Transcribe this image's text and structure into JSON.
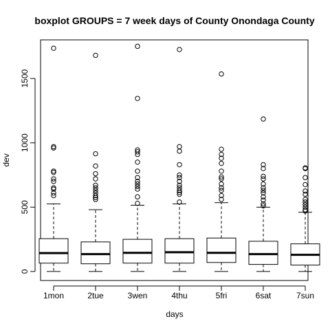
{
  "chart_data": {
    "type": "boxplot",
    "title": "boxplot GROUPS = 7 week days of County Onondaga County",
    "xlabel": "days",
    "ylabel": "dev",
    "ylim": [
      -70,
      1800
    ],
    "yticks": [
      0,
      500,
      1000,
      1500
    ],
    "categories": [
      "1mon",
      "2tue",
      "3wen",
      "4thu",
      "5fri",
      "6sat",
      "7sun"
    ],
    "grid": false,
    "legend": "none",
    "boxes": [
      {
        "category": "1mon",
        "whisker_low": 0,
        "q1": 65,
        "median": 143,
        "q3": 255,
        "whisker_high": 525,
        "outliers": [
          590,
          610,
          640,
          650,
          700,
          720,
          770,
          780,
          960,
          970,
          1735
        ]
      },
      {
        "category": "2tue",
        "whisker_low": 0,
        "q1": 60,
        "median": 135,
        "q3": 230,
        "whisker_high": 480,
        "outliers": [
          560,
          575,
          590,
          610,
          630,
          650,
          670,
          720,
          760,
          820,
          915,
          1680
        ]
      },
      {
        "category": "3wen",
        "whisker_low": 0,
        "q1": 65,
        "median": 145,
        "q3": 250,
        "whisker_high": 515,
        "outliers": [
          530,
          580,
          640,
          660,
          680,
          700,
          730,
          780,
          850,
          910,
          930,
          945,
          1345,
          1750
        ]
      },
      {
        "category": "4thu",
        "whisker_low": 0,
        "q1": 65,
        "median": 150,
        "q3": 255,
        "whisker_high": 525,
        "outliers": [
          540,
          600,
          615,
          630,
          650,
          670,
          700,
          730,
          750,
          830,
          935,
          970,
          1725
        ]
      },
      {
        "category": "5fri",
        "whisker_low": 0,
        "q1": 70,
        "median": 145,
        "q3": 260,
        "whisker_high": 535,
        "outliers": [
          560,
          590,
          630,
          650,
          680,
          720,
          735,
          780,
          840,
          880,
          910,
          950,
          1535
        ]
      },
      {
        "category": "6sat",
        "whisker_low": 0,
        "q1": 55,
        "median": 135,
        "q3": 235,
        "whisker_high": 500,
        "outliers": [
          510,
          525,
          555,
          580,
          610,
          630,
          650,
          680,
          720,
          740,
          800,
          830,
          1185
        ]
      },
      {
        "category": "7sun",
        "whisker_low": 0,
        "q1": 50,
        "median": 130,
        "q3": 215,
        "whisker_high": 460,
        "outliers": [
          470,
          480,
          500,
          520,
          540,
          560,
          600,
          625,
          675,
          730,
          800,
          805
        ]
      }
    ]
  }
}
